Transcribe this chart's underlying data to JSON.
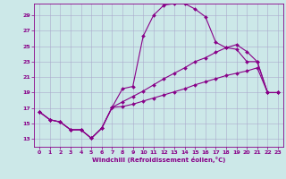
{
  "xlabel": "Windchill (Refroidissement éolien,°C)",
  "bg_color": "#cce8e8",
  "grid_color": "#aaaacc",
  "line_color": "#880088",
  "xlim_min": -0.5,
  "xlim_max": 23.5,
  "ylim_min": 12,
  "ylim_max": 30.5,
  "yticks": [
    13,
    15,
    17,
    19,
    21,
    23,
    25,
    27,
    29
  ],
  "xticks": [
    0,
    1,
    2,
    3,
    4,
    5,
    6,
    7,
    8,
    9,
    10,
    11,
    12,
    13,
    14,
    15,
    16,
    17,
    18,
    19,
    20,
    21,
    22,
    23
  ],
  "curve1_x": [
    0,
    1,
    2,
    3,
    4,
    5,
    6,
    7,
    8,
    9,
    10,
    11,
    12,
    13,
    14,
    15,
    16,
    17,
    18,
    19,
    20,
    21,
    22,
    23
  ],
  "curve1_y": [
    16.5,
    15.5,
    15.2,
    14.2,
    14.2,
    13.1,
    14.4,
    17.1,
    19.5,
    19.8,
    26.3,
    29.0,
    30.3,
    30.5,
    30.5,
    29.8,
    28.8,
    25.5,
    24.8,
    24.6,
    23.0,
    23.0,
    19.0,
    19.0
  ],
  "curve2_x": [
    0,
    1,
    2,
    3,
    4,
    5,
    6,
    7,
    8,
    9,
    10,
    11,
    12,
    13,
    14,
    15,
    16,
    17,
    18,
    19,
    20,
    21,
    22,
    23
  ],
  "curve2_y": [
    16.5,
    15.5,
    15.2,
    14.2,
    14.2,
    13.1,
    14.4,
    17.1,
    17.8,
    18.5,
    19.2,
    20.0,
    20.8,
    21.5,
    22.2,
    23.0,
    23.5,
    24.2,
    24.8,
    25.2,
    24.3,
    23.0,
    19.0,
    19.0
  ],
  "curve3_x": [
    0,
    1,
    2,
    3,
    4,
    5,
    6,
    7,
    8,
    9,
    10,
    11,
    12,
    13,
    14,
    15,
    16,
    17,
    18,
    19,
    20,
    21,
    22,
    23
  ],
  "curve3_y": [
    16.5,
    15.5,
    15.2,
    14.2,
    14.2,
    13.1,
    14.4,
    17.1,
    17.2,
    17.5,
    17.9,
    18.3,
    18.7,
    19.1,
    19.5,
    20.0,
    20.4,
    20.8,
    21.2,
    21.5,
    21.8,
    22.2,
    19.0,
    19.0
  ],
  "marker_size": 2.0,
  "line_width": 0.8,
  "tick_fontsize": 4.5,
  "xlabel_fontsize": 5.0
}
